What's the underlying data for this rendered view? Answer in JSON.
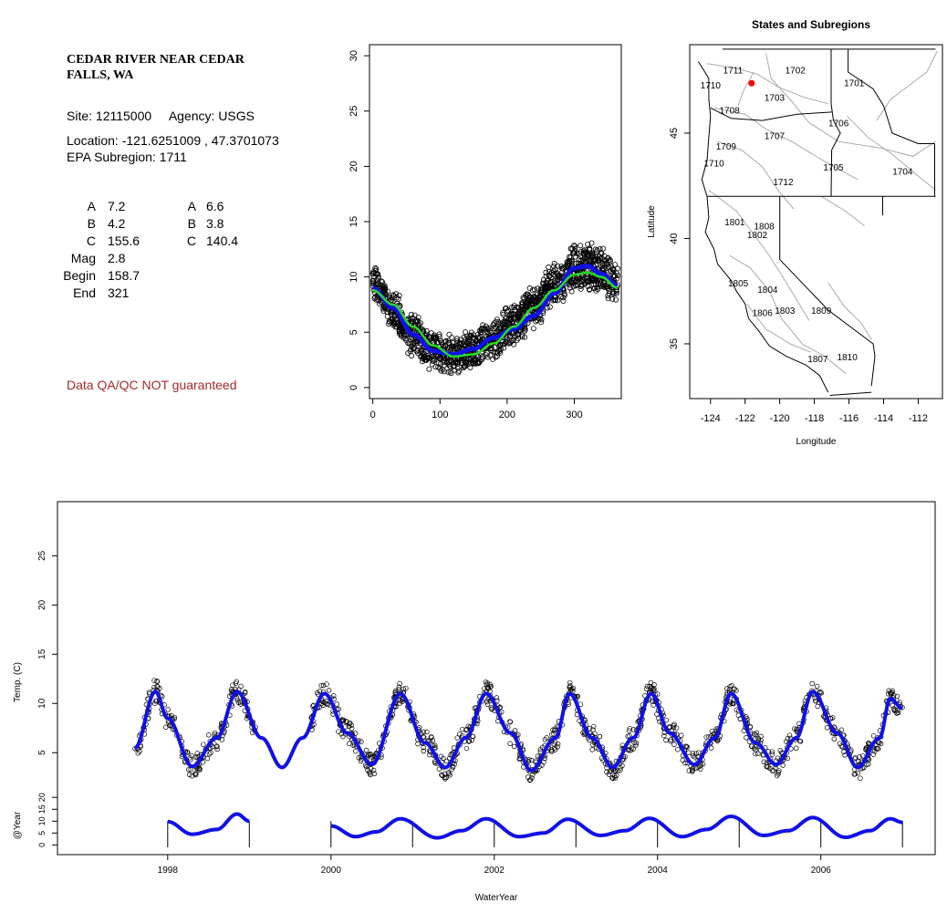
{
  "site": {
    "name": "CEDAR RIVER NEAR CEDAR FALLS, WA",
    "site_line": "Site: 12115000     Agency: USGS",
    "location_line": "Location: -121.6251009 , 47.3701073",
    "epa_line": "EPA Subregion: 1711",
    "params_left": [
      {
        "label": "A",
        "value": "7.2"
      },
      {
        "label": "B",
        "value": "4.2"
      },
      {
        "label": "C",
        "value": "155.6"
      },
      {
        "label": "Mag",
        "value": "2.8"
      },
      {
        "label": "Begin",
        "value": "158.7"
      },
      {
        "label": "End",
        "value": "321"
      }
    ],
    "params_right": [
      {
        "label": "A",
        "value": "6.6"
      },
      {
        "label": "B",
        "value": "3.8"
      },
      {
        "label": "C",
        "value": "140.4"
      }
    ],
    "qa_note": "Data QA/QC NOT guaranteed"
  },
  "colors": {
    "points": "#000000",
    "fit_blue": "#1010e8",
    "fit_green": "#22dd22",
    "qa_text": "#a52a2a",
    "site_marker": "#ff0000",
    "map_lines": "#aaaaaa"
  },
  "chart_data": [
    {
      "id": "doy",
      "type": "scatter",
      "title": "",
      "xlabel": "",
      "ylabel": "",
      "xlim": [
        -5,
        370
      ],
      "ylim": [
        -1,
        31
      ],
      "xticks": [
        0,
        100,
        200,
        300
      ],
      "yticks": [
        0,
        5,
        10,
        15,
        20,
        25,
        30
      ],
      "observed_band": [
        {
          "x": 0,
          "low": 8.0,
          "high": 10.8
        },
        {
          "x": 30,
          "low": 5.5,
          "high": 8.5
        },
        {
          "x": 60,
          "low": 3.0,
          "high": 6.5
        },
        {
          "x": 90,
          "low": 1.8,
          "high": 4.8
        },
        {
          "x": 120,
          "low": 1.2,
          "high": 4.5
        },
        {
          "x": 150,
          "low": 1.8,
          "high": 5.2
        },
        {
          "x": 180,
          "low": 2.8,
          "high": 6.2
        },
        {
          "x": 210,
          "low": 4.0,
          "high": 7.5
        },
        {
          "x": 240,
          "low": 5.5,
          "high": 9.0
        },
        {
          "x": 270,
          "low": 7.5,
          "high": 11.0
        },
        {
          "x": 300,
          "low": 9.0,
          "high": 12.8
        },
        {
          "x": 330,
          "low": 8.8,
          "high": 12.8
        },
        {
          "x": 365,
          "low": 8.0,
          "high": 11.5
        }
      ],
      "series": [
        {
          "color": "#1010e8",
          "x": [
            0,
            30,
            60,
            90,
            120,
            150,
            180,
            210,
            240,
            270,
            300,
            320,
            340,
            365
          ],
          "y": [
            9.0,
            7.2,
            4.8,
            3.3,
            3.0,
            3.5,
            4.5,
            5.3,
            6.5,
            8.5,
            10.8,
            11.0,
            10.3,
            9.2
          ]
        },
        {
          "color": "#22dd22",
          "x": [
            0,
            30,
            60,
            90,
            120,
            150,
            180,
            210,
            240,
            270,
            300,
            320,
            340,
            365
          ],
          "y": [
            8.8,
            7.5,
            5.5,
            3.8,
            2.8,
            3.0,
            4.0,
            5.5,
            7.2,
            8.8,
            10.2,
            10.4,
            10.0,
            9.0
          ]
        }
      ]
    },
    {
      "id": "map",
      "type": "map",
      "title": "States and Subregions",
      "xlabel": "Longitude",
      "ylabel": "Latitude",
      "xlim": [
        -125.2,
        -110.6
      ],
      "ylim": [
        32.4,
        49.2
      ],
      "xticks": [
        -124,
        -122,
        -120,
        -118,
        -116,
        -114,
        -112
      ],
      "yticks": [
        35,
        40,
        45
      ],
      "site": {
        "lon": -121.6251009,
        "lat": 47.3701073
      },
      "regions": [
        {
          "label": "1711",
          "lon": -122.7,
          "lat": 48.0
        },
        {
          "label": "1702",
          "lon": -119.1,
          "lat": 48.0
        },
        {
          "label": "1701",
          "lon": -115.7,
          "lat": 47.4
        },
        {
          "label": "1710",
          "lon": -124.0,
          "lat": 47.3
        },
        {
          "label": "1703",
          "lon": -120.3,
          "lat": 46.7
        },
        {
          "label": "1708",
          "lon": -122.9,
          "lat": 46.1
        },
        {
          "label": "1706",
          "lon": -116.6,
          "lat": 45.5
        },
        {
          "label": "1707",
          "lon": -120.3,
          "lat": 44.9
        },
        {
          "label": "1709",
          "lon": -123.1,
          "lat": 44.4
        },
        {
          "label": "1710",
          "lon": -123.8,
          "lat": 43.6
        },
        {
          "label": "1705",
          "lon": -116.9,
          "lat": 43.4
        },
        {
          "label": "1704",
          "lon": -112.9,
          "lat": 43.2
        },
        {
          "label": "1712",
          "lon": -119.8,
          "lat": 42.7
        },
        {
          "label": "1801",
          "lon": -122.6,
          "lat": 40.8
        },
        {
          "label": "1808",
          "lon": -120.9,
          "lat": 40.6
        },
        {
          "label": "1802",
          "lon": -121.3,
          "lat": 40.2
        },
        {
          "label": "1805",
          "lon": -122.4,
          "lat": 37.9
        },
        {
          "label": "1804",
          "lon": -120.7,
          "lat": 37.6
        },
        {
          "label": "1806",
          "lon": -121.0,
          "lat": 36.5
        },
        {
          "label": "1803",
          "lon": -119.7,
          "lat": 36.6
        },
        {
          "label": "1809",
          "lon": -117.6,
          "lat": 36.6
        },
        {
          "label": "1810",
          "lon": -116.1,
          "lat": 34.4
        },
        {
          "label": "1807",
          "lon": -117.8,
          "lat": 34.3
        }
      ]
    },
    {
      "id": "timeseries",
      "type": "line",
      "title": "",
      "xlabel": "WaterYear",
      "ylabel": "Temp. (C)",
      "xlim": [
        1996.65,
        2007.4
      ],
      "ylim": [
        1.5,
        30.5
      ],
      "xticks": [
        1998,
        2000,
        2002,
        2004,
        2006
      ],
      "yticks": [
        5,
        10,
        15,
        20,
        25
      ],
      "series": [
        {
          "color": "#1010e8",
          "x": [
            1997.6,
            1997.85,
            1998.0,
            1998.3,
            1998.6,
            1998.85,
            1999.15,
            1999.4,
            1999.65,
            1999.92,
            2000.2,
            2000.5,
            2000.85,
            2001.15,
            2001.4,
            2001.65,
            2001.9,
            2002.2,
            2002.45,
            2002.75,
            2002.92,
            2003.2,
            2003.45,
            2003.7,
            2003.92,
            2004.15,
            2004.45,
            2004.7,
            2004.9,
            2005.2,
            2005.45,
            2005.7,
            2005.9,
            2006.2,
            2006.45,
            2006.72,
            2006.85,
            2007.0
          ],
          "y": [
            5.5,
            11.2,
            8.5,
            3.6,
            6.5,
            11.2,
            6.5,
            3.5,
            6.5,
            11.0,
            7.0,
            3.8,
            11.0,
            6.0,
            3.5,
            6.5,
            11.0,
            7.0,
            3.2,
            6.5,
            11.0,
            6.5,
            3.5,
            6.5,
            11.0,
            7.0,
            3.8,
            6.5,
            11.0,
            6.0,
            3.8,
            6.5,
            11.2,
            7.0,
            3.5,
            6.5,
            10.5,
            9.5
          ]
        }
      ]
    },
    {
      "id": "annual",
      "type": "line",
      "title": "",
      "xlabel": "",
      "ylabel": "@Year",
      "ylim": [
        -1,
        22
      ],
      "yticks": [
        0,
        5,
        10,
        15,
        20
      ],
      "year_marks": [
        1998,
        1999,
        2000,
        2001,
        2002,
        2003,
        2004,
        2005,
        2006,
        2007
      ],
      "segments": [
        {
          "x": [
            1998.0,
            1998.3,
            1998.6,
            1998.85,
            1999.0
          ],
          "y": [
            9.8,
            4.5,
            6.5,
            13.0,
            10.0
          ]
        },
        {
          "x": [
            2000.0,
            2000.3,
            2000.55,
            2000.85,
            2001.3,
            2001.6,
            2001.9,
            2002.3,
            2002.6,
            2002.9,
            2003.3,
            2003.6,
            2003.9,
            2004.3,
            2004.6,
            2004.9,
            2005.3,
            2005.6,
            2005.9,
            2006.3,
            2006.6,
            2006.85,
            2007.0
          ],
          "y": [
            8.0,
            3.5,
            5.5,
            11.0,
            3.0,
            6.0,
            11.0,
            3.5,
            5.0,
            10.8,
            4.0,
            6.0,
            11.2,
            3.5,
            6.5,
            12.0,
            4.0,
            6.0,
            11.5,
            3.2,
            6.0,
            11.0,
            9.5
          ]
        }
      ]
    }
  ]
}
